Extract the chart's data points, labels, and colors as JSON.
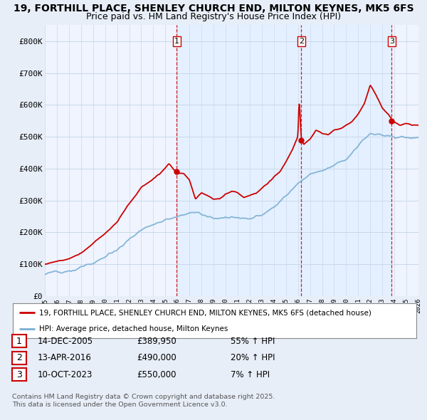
{
  "title_line1": "19, FORTHILL PLACE, SHENLEY CHURCH END, MILTON KEYNES, MK5 6FS",
  "title_line2": "Price paid vs. HM Land Registry's House Price Index (HPI)",
  "title_fontsize": 10,
  "subtitle_fontsize": 9,
  "ylim": [
    0,
    850000
  ],
  "yticks": [
    0,
    100000,
    200000,
    300000,
    400000,
    500000,
    600000,
    700000,
    800000
  ],
  "ytick_labels": [
    "£0",
    "£100K",
    "£200K",
    "£300K",
    "£400K",
    "£500K",
    "£600K",
    "£700K",
    "£800K"
  ],
  "hpi_color": "#7bafd4",
  "price_color": "#cc0000",
  "vline_color": "#cc0000",
  "grid_color": "#c8d8e8",
  "shade_color": "#ddeeff",
  "background_color": "#e8eef8",
  "plot_bg_color": "#f0f4ff",
  "transactions": [
    {
      "num": 1,
      "date_num": 2005.95,
      "price": 389950,
      "label": "1",
      "date_str": "14-DEC-2005",
      "price_str": "£389,950",
      "pct_str": "55% ↑ HPI"
    },
    {
      "num": 2,
      "date_num": 2016.28,
      "price": 490000,
      "label": "2",
      "date_str": "13-APR-2016",
      "price_str": "£490,000",
      "pct_str": "20% ↑ HPI"
    },
    {
      "num": 3,
      "date_num": 2023.78,
      "price": 550000,
      "label": "3",
      "date_str": "10-OCT-2023",
      "price_str": "£550,000",
      "pct_str": "7% ↑ HPI"
    }
  ],
  "legend_entries": [
    {
      "label": "19, FORTHILL PLACE, SHENLEY CHURCH END, MILTON KEYNES, MK5 6FS (detached house)",
      "color": "#cc0000"
    },
    {
      "label": "HPI: Average price, detached house, Milton Keynes",
      "color": "#7bafd4"
    }
  ],
  "footer_line1": "Contains HM Land Registry data © Crown copyright and database right 2025.",
  "footer_line2": "This data is licensed under the Open Government Licence v3.0.",
  "xmin": 1995,
  "xmax": 2026
}
